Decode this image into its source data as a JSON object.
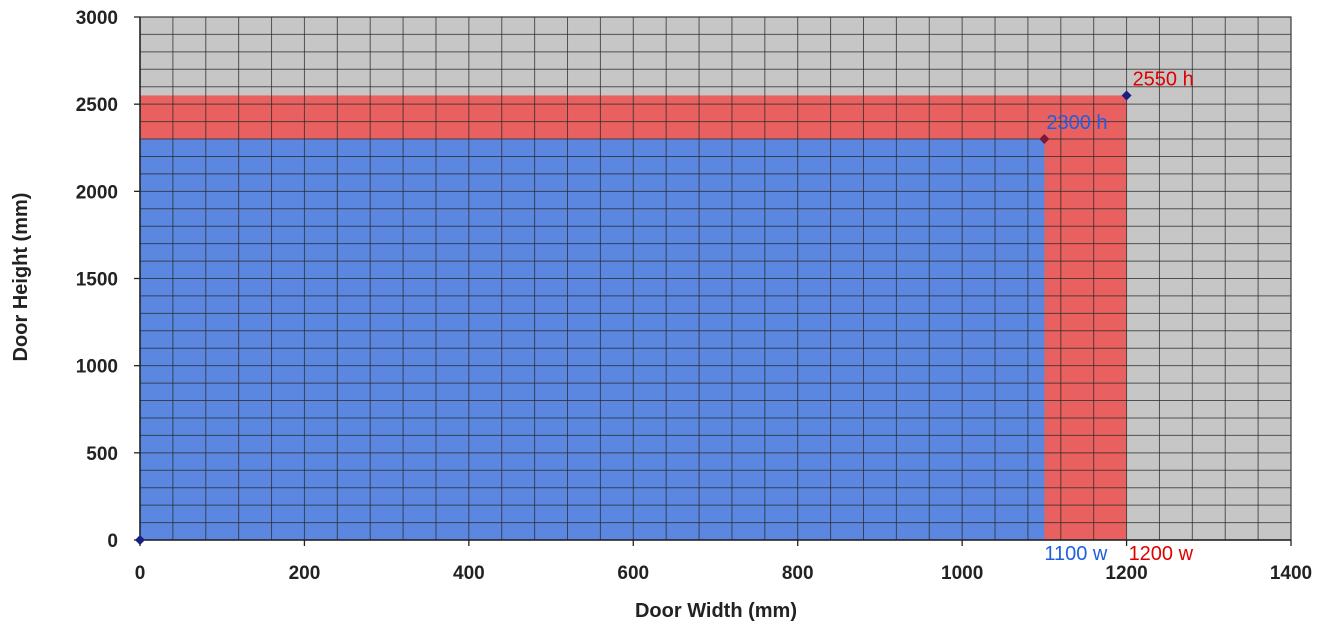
{
  "chart_data": {
    "type": "area",
    "xlabel": "Door Width (mm)",
    "ylabel": "Door Height (mm)",
    "xlim": [
      0,
      1400
    ],
    "ylim": [
      0,
      3000
    ],
    "x_ticks": [
      0,
      200,
      400,
      600,
      800,
      1000,
      1200,
      1400
    ],
    "y_ticks": [
      0,
      500,
      1000,
      1500,
      2000,
      2500,
      3000
    ],
    "x_tick_labels": [
      "0",
      "200",
      "400",
      "600",
      "800",
      "1000",
      "1200",
      "1400"
    ],
    "y_tick_labels": [
      "0",
      "500",
      "1000",
      "1500",
      "2000",
      "2500",
      "3000"
    ],
    "grid": true,
    "minor_grid": {
      "x_step": 40,
      "y_step": 100
    },
    "background_color": "#c6c6c6",
    "regions": [
      {
        "width": 1200,
        "height": 2550,
        "color": "#e8605f"
      },
      {
        "width": 1100,
        "height": 2300,
        "color": "#5b87e0"
      }
    ],
    "points": [
      {
        "x": 0,
        "y": 0,
        "color": "#1a1f80"
      },
      {
        "x": 1100,
        "y": 2300,
        "color": "#7a1a3a"
      },
      {
        "x": 1200,
        "y": 2550,
        "color": "#1a1f80"
      }
    ],
    "annotations": [
      {
        "text": "2550 h",
        "x": 1200,
        "y": 2550,
        "color": "#e00000"
      },
      {
        "text": "2300 h",
        "x": 1100,
        "y": 2300,
        "color": "#1f5fe0"
      },
      {
        "text": "1100 w",
        "x": 1100,
        "y": 0,
        "color": "#1f5fe0"
      },
      {
        "text": "1200 w",
        "x": 1200,
        "y": 0,
        "color": "#e00000"
      }
    ]
  }
}
